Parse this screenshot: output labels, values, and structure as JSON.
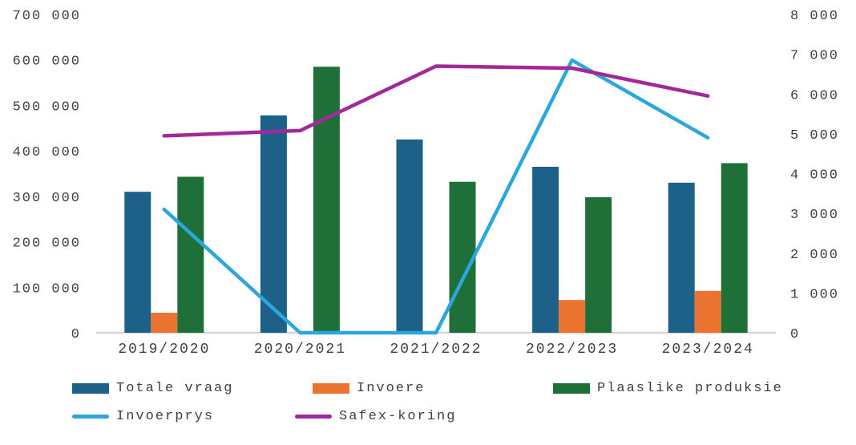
{
  "chart_data": {
    "type": "combo-bar-line",
    "title": "",
    "categories": [
      "2019/2020",
      "2020/2021",
      "2021/2022",
      "2022/2023",
      "2023/2024"
    ],
    "series": [
      {
        "name": "Totale vraag",
        "kind": "bar",
        "axis": "left",
        "color": "#1D6188",
        "values": [
          310000,
          478000,
          425000,
          365000,
          330000
        ]
      },
      {
        "name": "Invoere",
        "kind": "bar",
        "axis": "left",
        "color": "#E9732F",
        "values": [
          44000,
          0,
          0,
          72000,
          92000
        ]
      },
      {
        "name": "Plaaslike produksie",
        "kind": "bar",
        "axis": "left",
        "color": "#1F6F39",
        "values": [
          343000,
          585000,
          332000,
          298000,
          373000
        ]
      },
      {
        "name": "Invoerprys",
        "kind": "line",
        "axis": "right",
        "color": "#2BA7DC",
        "values": [
          3100,
          0,
          0,
          6850,
          4900
        ]
      },
      {
        "name": "Safex-koring",
        "kind": "line",
        "axis": "right",
        "color": "#A2289B",
        "values": [
          4950,
          5080,
          6700,
          6650,
          5950
        ]
      }
    ],
    "left_axis": {
      "min": 0,
      "max": 700000,
      "step": 100000,
      "tick_labels": [
        "0",
        "100 000",
        "200 000",
        "300 000",
        "400 000",
        "500 000",
        "600 000",
        "700 000"
      ]
    },
    "right_axis": {
      "min": 0,
      "max": 8000,
      "step": 1000,
      "tick_labels": [
        "0",
        "1 000",
        "2 000",
        "3 000",
        "4 000",
        "5 000",
        "6 000",
        "7 000",
        "8 000"
      ]
    },
    "grid": false,
    "legend_position": "bottom",
    "background_color": "#FFFFFF",
    "axis_line_color": "#D6D6D6",
    "text_color": "#3F3F3F"
  }
}
